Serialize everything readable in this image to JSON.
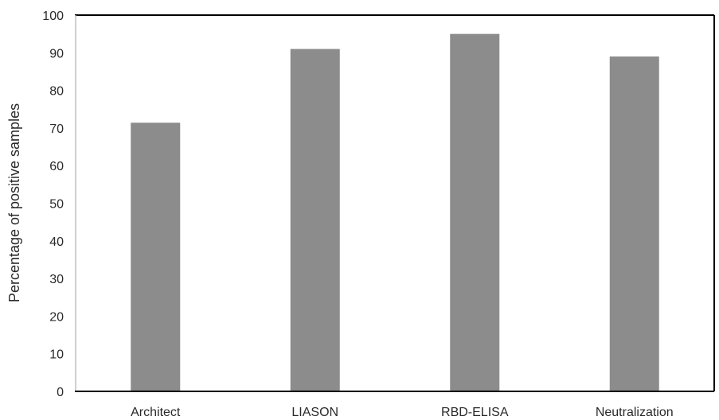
{
  "chart_data": {
    "type": "bar",
    "title": "",
    "xlabel": "",
    "ylabel": "Percentage of positive samples",
    "categories": [
      "Architect",
      "LIASON",
      "RBD-ELISA",
      "Neutralization"
    ],
    "values": [
      71.4,
      91,
      95,
      89
    ],
    "ylim": [
      0,
      100
    ],
    "yticks": [
      0,
      10,
      20,
      30,
      40,
      50,
      60,
      70,
      80,
      90,
      100
    ],
    "grid": false,
    "legend": "none",
    "bar_color": "#8c8c8c"
  }
}
